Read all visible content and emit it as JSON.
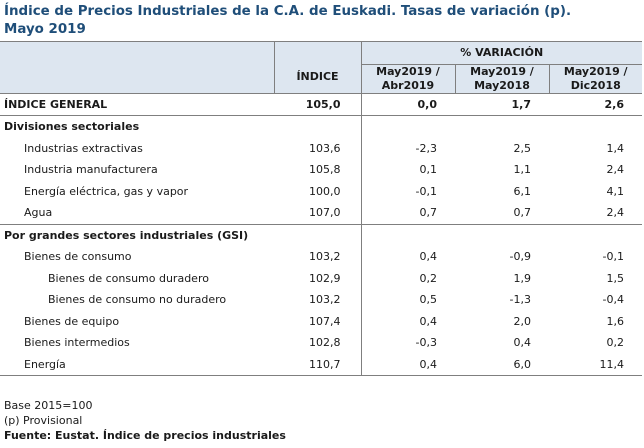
{
  "title_line1": "Índice de Precios Industriales de la C.A. de Euskadi. Tasas de variación (p).",
  "title_line2": "Mayo 2019",
  "header": {
    "variacion": "% VARIACIÓN",
    "indice": "ÍNDICE",
    "col1_line1": "May2019 /",
    "col1_line2": "Abr2019",
    "col2_line1": "May2019 /",
    "col2_line2": "May2018",
    "col3_line1": "May2019 /",
    "col3_line2": "Dic2018"
  },
  "general": {
    "label": "ÍNDICE GENERAL",
    "indice": "105,0",
    "v1": "0,0",
    "v2": "1,7",
    "v3": "2,6"
  },
  "section1": "Divisiones sectoriales",
  "rows1": [
    {
      "label": "Industrias extractivas",
      "indice": "103,6",
      "v1": "-2,3",
      "v2": "2,5",
      "v3": "1,4"
    },
    {
      "label": "Industria manufacturera",
      "indice": "105,8",
      "v1": "0,1",
      "v2": "1,1",
      "v3": "2,4"
    },
    {
      "label": "Energía eléctrica, gas y vapor",
      "indice": "100,0",
      "v1": "-0,1",
      "v2": "6,1",
      "v3": "4,1"
    },
    {
      "label": "Agua",
      "indice": "107,0",
      "v1": "0,7",
      "v2": "0,7",
      "v3": "2,4"
    }
  ],
  "section2": "Por grandes sectores industriales (GSI)",
  "rows2": [
    {
      "label": "Bienes de consumo",
      "indice": "103,2",
      "v1": "0,4",
      "v2": "-0,9",
      "v3": "-0,1"
    },
    {
      "label": "Bienes de consumo duradero",
      "indice": "102,9",
      "v1": "0,2",
      "v2": "1,9",
      "v3": "1,5"
    },
    {
      "label": "Bienes de consumo no duradero",
      "indice": "103,2",
      "v1": "0,5",
      "v2": "-1,3",
      "v3": "-0,4"
    },
    {
      "label": "Bienes de equipo",
      "indice": "107,4",
      "v1": "0,4",
      "v2": "2,0",
      "v3": "1,6"
    },
    {
      "label": "Bienes intermedios",
      "indice": "102,8",
      "v1": "-0,3",
      "v2": "0,4",
      "v3": "0,2"
    },
    {
      "label": "Energía",
      "indice": "110,7",
      "v1": "0,4",
      "v2": "6,0",
      "v3": "11,4"
    }
  ],
  "footer": {
    "base": "Base 2015=100",
    "provisional": "(p) Provisional",
    "source": "Fuente: Eustat. Índice de precios industriales"
  }
}
